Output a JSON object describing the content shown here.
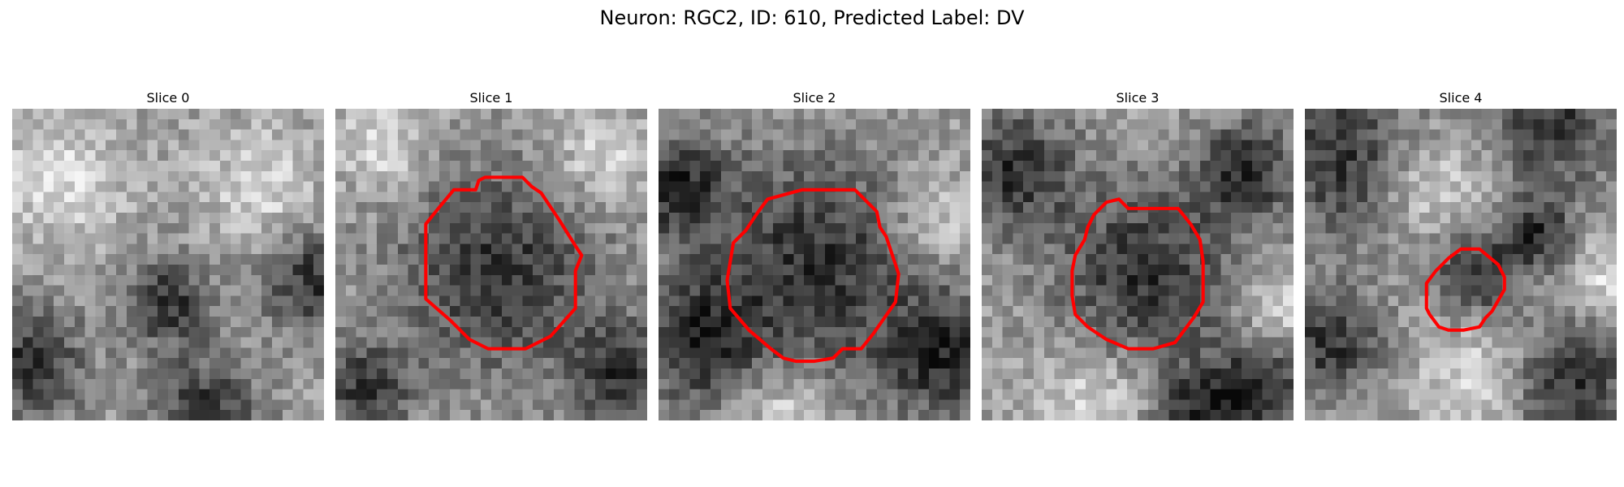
{
  "figure": {
    "title": "Neuron: RGC2, ID: 610, Predicted Label: DV"
  },
  "panels": [
    {
      "title": "Slice 0",
      "has_contour": false,
      "dark_blobs": [
        [
          0.05,
          0.82,
          0.13
        ],
        [
          0.97,
          0.55,
          0.12
        ],
        [
          0.62,
          0.97,
          0.12
        ],
        [
          0.5,
          0.62,
          0.1
        ]
      ],
      "bright_blobs": [
        [
          0.15,
          0.22,
          0.14
        ],
        [
          0.8,
          0.25,
          0.12
        ]
      ],
      "contour": []
    },
    {
      "title": "Slice 1",
      "has_contour": true,
      "dark_blobs": [
        [
          0.52,
          0.52,
          0.23
        ],
        [
          0.1,
          0.9,
          0.1
        ],
        [
          0.92,
          0.85,
          0.12
        ]
      ],
      "bright_blobs": [
        [
          0.15,
          0.12,
          0.1
        ],
        [
          0.85,
          0.15,
          0.1
        ]
      ],
      "contour": [
        [
          0.46,
          0.23
        ],
        [
          0.48,
          0.22
        ],
        [
          0.6,
          0.22
        ],
        [
          0.63,
          0.25
        ],
        [
          0.66,
          0.27
        ],
        [
          0.72,
          0.36
        ],
        [
          0.77,
          0.44
        ],
        [
          0.79,
          0.47
        ],
        [
          0.77,
          0.52
        ],
        [
          0.77,
          0.63
        ],
        [
          0.77,
          0.64
        ],
        [
          0.69,
          0.73
        ],
        [
          0.61,
          0.77
        ],
        [
          0.58,
          0.77
        ],
        [
          0.57,
          0.77
        ],
        [
          0.49,
          0.77
        ],
        [
          0.43,
          0.74
        ],
        [
          0.37,
          0.68
        ],
        [
          0.29,
          0.61
        ],
        [
          0.29,
          0.48
        ],
        [
          0.29,
          0.37
        ],
        [
          0.33,
          0.32
        ],
        [
          0.38,
          0.26
        ],
        [
          0.45,
          0.26
        ]
      ]
    },
    {
      "title": "Slice 2",
      "has_contour": true,
      "dark_blobs": [
        [
          0.5,
          0.5,
          0.26
        ],
        [
          0.05,
          0.25,
          0.12
        ],
        [
          0.12,
          0.75,
          0.14
        ],
        [
          0.92,
          0.8,
          0.14
        ]
      ],
      "bright_blobs": [
        [
          0.88,
          0.35,
          0.1
        ],
        [
          0.4,
          0.97,
          0.1
        ]
      ],
      "contour": [
        [
          0.35,
          0.29
        ],
        [
          0.46,
          0.26
        ],
        [
          0.63,
          0.26
        ],
        [
          0.7,
          0.33
        ],
        [
          0.71,
          0.38
        ],
        [
          0.73,
          0.41
        ],
        [
          0.77,
          0.53
        ],
        [
          0.76,
          0.62
        ],
        [
          0.69,
          0.72
        ],
        [
          0.65,
          0.77
        ],
        [
          0.59,
          0.77
        ],
        [
          0.56,
          0.8
        ],
        [
          0.5,
          0.81
        ],
        [
          0.44,
          0.81
        ],
        [
          0.4,
          0.8
        ],
        [
          0.36,
          0.77
        ],
        [
          0.29,
          0.71
        ],
        [
          0.23,
          0.64
        ],
        [
          0.22,
          0.55
        ],
        [
          0.24,
          0.43
        ],
        [
          0.28,
          0.39
        ],
        [
          0.32,
          0.33
        ]
      ]
    },
    {
      "title": "Slice 3",
      "has_contour": true,
      "dark_blobs": [
        [
          0.52,
          0.53,
          0.2
        ],
        [
          0.1,
          0.2,
          0.14
        ],
        [
          0.85,
          0.2,
          0.12
        ],
        [
          0.9,
          0.9,
          0.12
        ],
        [
          0.7,
          0.98,
          0.1
        ]
      ],
      "bright_blobs": [
        [
          0.35,
          0.95,
          0.12
        ],
        [
          0.95,
          0.65,
          0.08
        ]
      ],
      "contour": [
        [
          0.36,
          0.34
        ],
        [
          0.4,
          0.3
        ],
        [
          0.44,
          0.29
        ],
        [
          0.47,
          0.32
        ],
        [
          0.63,
          0.32
        ],
        [
          0.67,
          0.37
        ],
        [
          0.7,
          0.42
        ],
        [
          0.71,
          0.49
        ],
        [
          0.71,
          0.62
        ],
        [
          0.68,
          0.67
        ],
        [
          0.65,
          0.71
        ],
        [
          0.62,
          0.75
        ],
        [
          0.55,
          0.77
        ],
        [
          0.47,
          0.77
        ],
        [
          0.4,
          0.74
        ],
        [
          0.34,
          0.7
        ],
        [
          0.3,
          0.66
        ],
        [
          0.29,
          0.6
        ],
        [
          0.29,
          0.52
        ],
        [
          0.3,
          0.47
        ],
        [
          0.33,
          0.42
        ],
        [
          0.34,
          0.38
        ]
      ]
    },
    {
      "title": "Slice 4",
      "has_contour": true,
      "dark_blobs": [
        [
          0.55,
          0.53,
          0.1
        ],
        [
          0.12,
          0.15,
          0.18
        ],
        [
          0.08,
          0.75,
          0.12
        ],
        [
          0.85,
          0.88,
          0.14
        ],
        [
          0.75,
          0.4,
          0.08
        ],
        [
          0.8,
          0.05,
          0.14
        ]
      ],
      "bright_blobs": [
        [
          0.4,
          0.25,
          0.12
        ],
        [
          0.55,
          0.85,
          0.12
        ],
        [
          0.95,
          0.55,
          0.08
        ]
      ],
      "contour": [
        [
          0.5,
          0.45
        ],
        [
          0.53,
          0.45
        ],
        [
          0.56,
          0.45
        ],
        [
          0.62,
          0.5
        ],
        [
          0.64,
          0.54
        ],
        [
          0.64,
          0.58
        ],
        [
          0.6,
          0.65
        ],
        [
          0.58,
          0.67
        ],
        [
          0.56,
          0.7
        ],
        [
          0.51,
          0.71
        ],
        [
          0.46,
          0.71
        ],
        [
          0.43,
          0.7
        ],
        [
          0.4,
          0.66
        ],
        [
          0.39,
          0.64
        ],
        [
          0.39,
          0.58
        ],
        [
          0.39,
          0.56
        ],
        [
          0.42,
          0.52
        ],
        [
          0.46,
          0.48
        ]
      ]
    }
  ],
  "colors": {
    "contour": "#ff0000"
  }
}
